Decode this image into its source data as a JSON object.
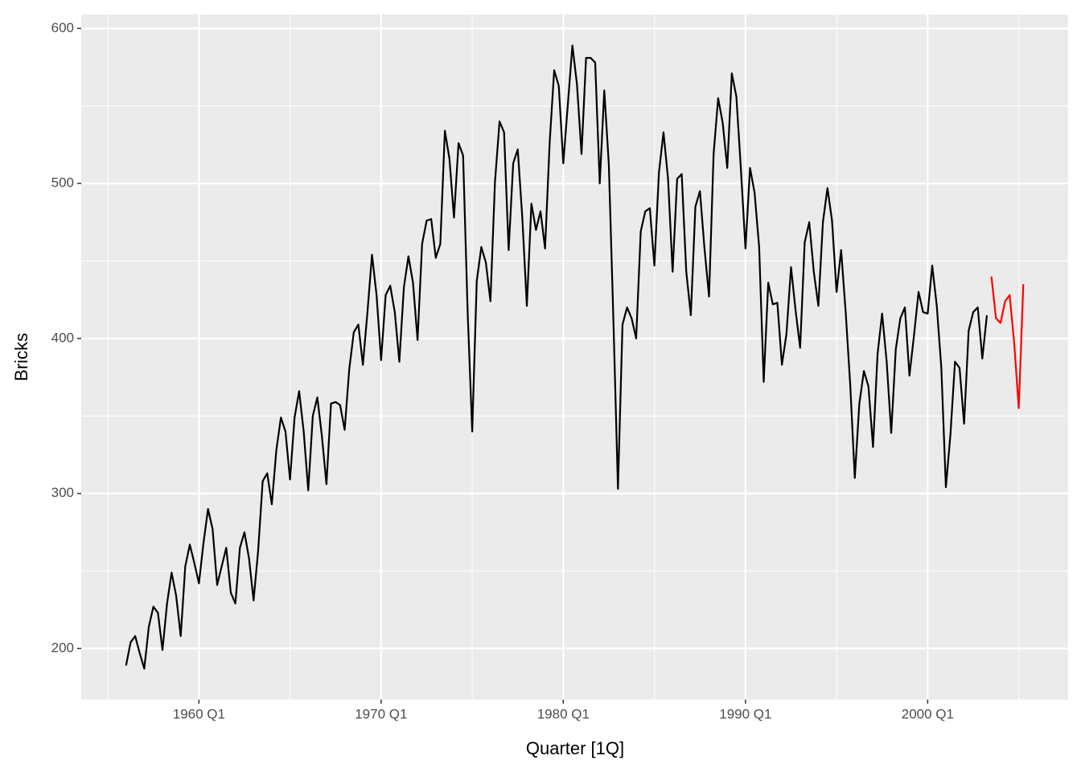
{
  "chart_data": {
    "type": "line",
    "xlabel": "Quarter [1Q]",
    "ylabel": "Bricks",
    "xlim": [
      1953.54,
      2007.71
    ],
    "ylim": [
      167,
      609
    ],
    "xticks": [
      {
        "value": 1960,
        "label": "1960 Q1"
      },
      {
        "value": 1970,
        "label": "1970 Q1"
      },
      {
        "value": 1980,
        "label": "1980 Q1"
      },
      {
        "value": 1990,
        "label": "1990 Q1"
      },
      {
        "value": 2000,
        "label": "2000 Q1"
      }
    ],
    "xminor": [
      1955,
      1965,
      1975,
      1985,
      1995,
      2005
    ],
    "yticks": [
      200,
      300,
      400,
      500,
      600
    ],
    "yminor": [
      250,
      350,
      450,
      550
    ],
    "grid": true,
    "series": [
      {
        "color": "#000000",
        "x": [
          1956,
          1956.25,
          1956.5,
          1956.75,
          1957,
          1957.25,
          1957.5,
          1957.75,
          1958,
          1958.25,
          1958.5,
          1958.75,
          1959,
          1959.25,
          1959.5,
          1959.75,
          1960,
          1960.25,
          1960.5,
          1960.75,
          1961,
          1961.25,
          1961.5,
          1961.75,
          1962,
          1962.25,
          1962.5,
          1962.75,
          1963,
          1963.25,
          1963.5,
          1963.75,
          1964,
          1964.25,
          1964.5,
          1964.75,
          1965,
          1965.25,
          1965.5,
          1965.75,
          1966,
          1966.25,
          1966.5,
          1966.75,
          1967,
          1967.25,
          1967.5,
          1967.75,
          1968,
          1968.25,
          1968.5,
          1968.75,
          1969,
          1969.25,
          1969.5,
          1969.75,
          1970,
          1970.25,
          1970.5,
          1970.75,
          1971,
          1971.25,
          1971.5,
          1971.75,
          1972,
          1972.25,
          1972.5,
          1972.75,
          1973,
          1973.25,
          1973.5,
          1973.75,
          1974,
          1974.25,
          1974.5,
          1974.75,
          1975,
          1975.25,
          1975.5,
          1975.75,
          1976,
          1976.25,
          1976.5,
          1976.75,
          1977,
          1977.25,
          1977.5,
          1977.75,
          1978,
          1978.25,
          1978.5,
          1978.75,
          1979,
          1979.25,
          1979.5,
          1979.75,
          1980,
          1980.25,
          1980.5,
          1980.75,
          1981,
          1981.25,
          1981.5,
          1981.75,
          1982,
          1982.25,
          1982.5,
          1982.75,
          1983,
          1983.25,
          1983.5,
          1983.75,
          1984,
          1984.25,
          1984.5,
          1984.75,
          1985,
          1985.25,
          1985.5,
          1985.75,
          1986,
          1986.25,
          1986.5,
          1986.75,
          1987,
          1987.25,
          1987.5,
          1987.75,
          1988,
          1988.25,
          1988.5,
          1988.75,
          1989,
          1989.25,
          1989.5,
          1989.75,
          1990,
          1990.25,
          1990.5,
          1990.75,
          1991,
          1991.25,
          1991.5,
          1991.75,
          1992,
          1992.25,
          1992.5,
          1992.75,
          1993,
          1993.25,
          1993.5,
          1993.75,
          1994,
          1994.25,
          1994.5,
          1994.75,
          1995,
          1995.25,
          1995.5,
          1995.75,
          1996,
          1996.25,
          1996.5,
          1996.75,
          1997,
          1997.25,
          1997.5,
          1997.75,
          1998,
          1998.25,
          1998.5,
          1998.75,
          1999,
          1999.25,
          1999.5,
          1999.75,
          2000,
          2000.25,
          2000.5,
          2000.75,
          2001,
          2001.25,
          2001.5,
          2001.75,
          2002,
          2002.25,
          2002.5,
          2002.75,
          2003,
          2003.25
        ],
        "values": [
          189,
          204,
          208,
          197,
          187,
          214,
          227,
          223,
          199,
          229,
          249,
          234,
          208,
          253,
          267,
          255,
          242,
          268,
          290,
          277,
          241,
          253,
          265,
          236,
          229,
          265,
          275,
          258,
          231,
          263,
          308,
          313,
          293,
          328,
          349,
          340,
          309,
          349,
          366,
          340,
          302,
          350,
          362,
          337,
          306,
          358,
          359,
          357,
          341,
          380,
          404,
          409,
          383,
          417,
          454,
          428,
          386,
          428,
          434,
          417,
          385,
          433,
          453,
          436,
          399,
          461,
          476,
          477,
          452,
          461,
          534,
          516,
          478,
          526,
          518,
          417,
          340,
          437,
          459,
          449,
          424,
          501,
          540,
          533,
          457,
          513,
          522,
          478,
          421,
          487,
          470,
          482,
          458,
          526,
          573,
          563,
          513,
          551,
          589,
          564,
          519,
          581,
          581,
          578,
          500,
          560,
          512,
          412,
          303,
          409,
          420,
          413,
          400,
          469,
          482,
          484,
          447,
          507,
          533,
          503,
          443,
          503,
          506,
          443,
          415,
          485,
          495,
          458,
          427,
          519,
          555,
          539,
          510,
          571,
          556,
          509,
          458,
          510,
          494,
          459,
          372,
          436,
          422,
          423,
          383,
          403,
          446,
          418,
          394,
          462,
          475,
          443,
          421,
          475,
          497,
          476,
          430,
          457,
          417,
          370,
          310,
          358,
          379,
          369,
          330,
          390,
          416,
          385,
          339,
          393,
          413,
          420,
          376,
          402,
          430,
          417,
          416,
          447,
          421,
          381,
          304,
          338,
          385,
          381,
          345,
          405,
          417,
          420,
          387,
          415
        ]
      },
      {
        "color": "#ff0000",
        "x": [
          2003.5,
          2003.75,
          2004,
          2004.25,
          2004.5,
          2004.75,
          2005,
          2005.25
        ],
        "values": [
          440,
          413,
          410,
          424,
          428,
          397,
          355,
          435
        ]
      }
    ]
  }
}
